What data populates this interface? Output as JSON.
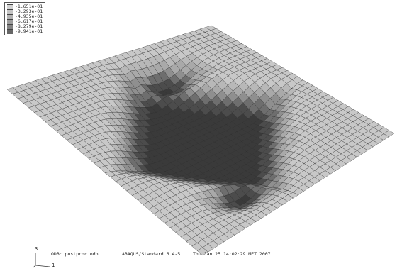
{
  "legend": {
    "colors": [
      "#d2d2d2",
      "#c4c4c4",
      "#b3b3b3",
      "#9d9d9d",
      "#838383",
      "#666666",
      "#4a4a4a",
      "#2e2e2e"
    ],
    "labels": [
      "-1.651e-01",
      "-3.293e-01",
      "-4.935e-01",
      "-6.617e-01",
      "-8.279e-01",
      "-9.941e-01"
    ]
  },
  "triad": {
    "axis_3": "3",
    "axis_1": "1"
  },
  "info": {
    "odb": "ODB: postproc.odb",
    "solver": "ABAQUS/Standard 6.4-5",
    "date": "Thu Jan 25 14:02:29 MET 2007"
  },
  "mesh": {
    "line_color": "#2a2a2a",
    "surface_colors": [
      "#c8c8c8",
      "#b8b8b8",
      "#a9a9a9",
      "#8f8f8f",
      "#6e6e6e",
      "#4c4c4c",
      "#3a3a3a"
    ]
  }
}
